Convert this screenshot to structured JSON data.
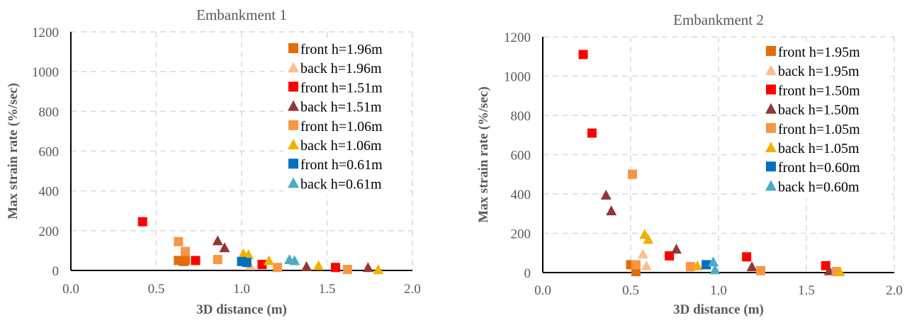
{
  "chart_data": [
    {
      "type": "scatter",
      "title": "Embankment 1",
      "xlabel": "3D distance (m)",
      "ylabel": "Max strain rate (%/sec)",
      "xlim": [
        0,
        2
      ],
      "ylim": [
        0,
        1200
      ],
      "xticks": [
        "0.0",
        "0.5",
        "1.0",
        "1.5",
        "2.0"
      ],
      "yticks": [
        "0",
        "200",
        "400",
        "600",
        "800",
        "1000",
        "1200"
      ],
      "grid": true,
      "legend": "top-right",
      "series": [
        {
          "name": "front h=1.96m",
          "marker": "square",
          "color": "#e36c09",
          "x": [
            0.63,
            0.67,
            0.66
          ],
          "y": [
            50,
            50,
            45
          ]
        },
        {
          "name": "back h=1.96m",
          "marker": "triangle",
          "color": "#fac090",
          "x": [
            1.05
          ],
          "y": [
            25
          ]
        },
        {
          "name": "front h=1.51m",
          "marker": "square",
          "color": "#ff0000",
          "x": [
            0.42,
            0.73,
            1.12,
            1.55
          ],
          "y": [
            245,
            50,
            30,
            15
          ]
        },
        {
          "name": "back h=1.51m",
          "marker": "triangle",
          "color": "#943634",
          "x": [
            0.86,
            0.9,
            1.38,
            1.74
          ],
          "y": [
            150,
            115,
            20,
            15
          ]
        },
        {
          "name": "front h=1.06m",
          "marker": "square",
          "color": "#f79646",
          "x": [
            0.63,
            0.67,
            0.86,
            1.21,
            1.62
          ],
          "y": [
            145,
            95,
            55,
            15,
            5
          ]
        },
        {
          "name": "back h=1.06m",
          "marker": "triangle",
          "color": "#f2b000",
          "x": [
            1.01,
            1.04,
            1.16,
            1.45,
            1.8
          ],
          "y": [
            85,
            80,
            50,
            25,
            5
          ]
        },
        {
          "name": "front h=0.61m",
          "marker": "square",
          "color": "#0070c0",
          "x": [
            1.0,
            1.03
          ],
          "y": [
            45,
            40
          ]
        },
        {
          "name": "back h=0.61m",
          "marker": "triangle",
          "color": "#4bacc6",
          "x": [
            1.28,
            1.31
          ],
          "y": [
            55,
            50
          ]
        }
      ]
    },
    {
      "type": "scatter",
      "title": "Embankment 2",
      "xlabel": "3D distance (m)",
      "ylabel": "Max strain rate (%/sec)",
      "xlim": [
        0,
        2
      ],
      "ylim": [
        0,
        1200
      ],
      "xticks": [
        "0.0",
        "0.5",
        "1.0",
        "1.5",
        "2.0"
      ],
      "yticks": [
        "0",
        "200",
        "400",
        "600",
        "800",
        "1000",
        "1200"
      ],
      "grid": true,
      "legend": "top-right",
      "series": [
        {
          "name": "front h=1.95m",
          "marker": "square",
          "color": "#e36c09",
          "x": [
            0.5,
            0.53
          ],
          "y": [
            40,
            5
          ]
        },
        {
          "name": "back h=1.95m",
          "marker": "triangle",
          "color": "#fac090",
          "x": [
            0.57,
            0.59
          ],
          "y": [
            95,
            35
          ]
        },
        {
          "name": "front h=1.50m",
          "marker": "square",
          "color": "#ff0000",
          "x": [
            0.23,
            0.28,
            0.72,
            1.16,
            1.61
          ],
          "y": [
            1110,
            710,
            85,
            80,
            35
          ]
        },
        {
          "name": "back h=1.50m",
          "marker": "triangle",
          "color": "#943634",
          "x": [
            0.36,
            0.39,
            0.76,
            1.19,
            1.63
          ],
          "y": [
            395,
            315,
            120,
            30,
            10
          ]
        },
        {
          "name": "front h=1.05m",
          "marker": "square",
          "color": "#f79646",
          "x": [
            0.51,
            0.53,
            0.84,
            1.24,
            1.67
          ],
          "y": [
            500,
            40,
            30,
            10,
            5
          ]
        },
        {
          "name": "back h=1.05m",
          "marker": "triangle",
          "color": "#f2b000",
          "x": [
            0.58,
            0.6,
            0.88,
            1.69
          ],
          "y": [
            195,
            170,
            35,
            5
          ]
        },
        {
          "name": "front h=0.60m",
          "marker": "square",
          "color": "#0070c0",
          "x": [
            0.93
          ],
          "y": [
            40
          ]
        },
        {
          "name": "back h=0.60m",
          "marker": "triangle",
          "color": "#4bacc6",
          "x": [
            0.97,
            0.98
          ],
          "y": [
            55,
            15
          ]
        }
      ]
    }
  ]
}
